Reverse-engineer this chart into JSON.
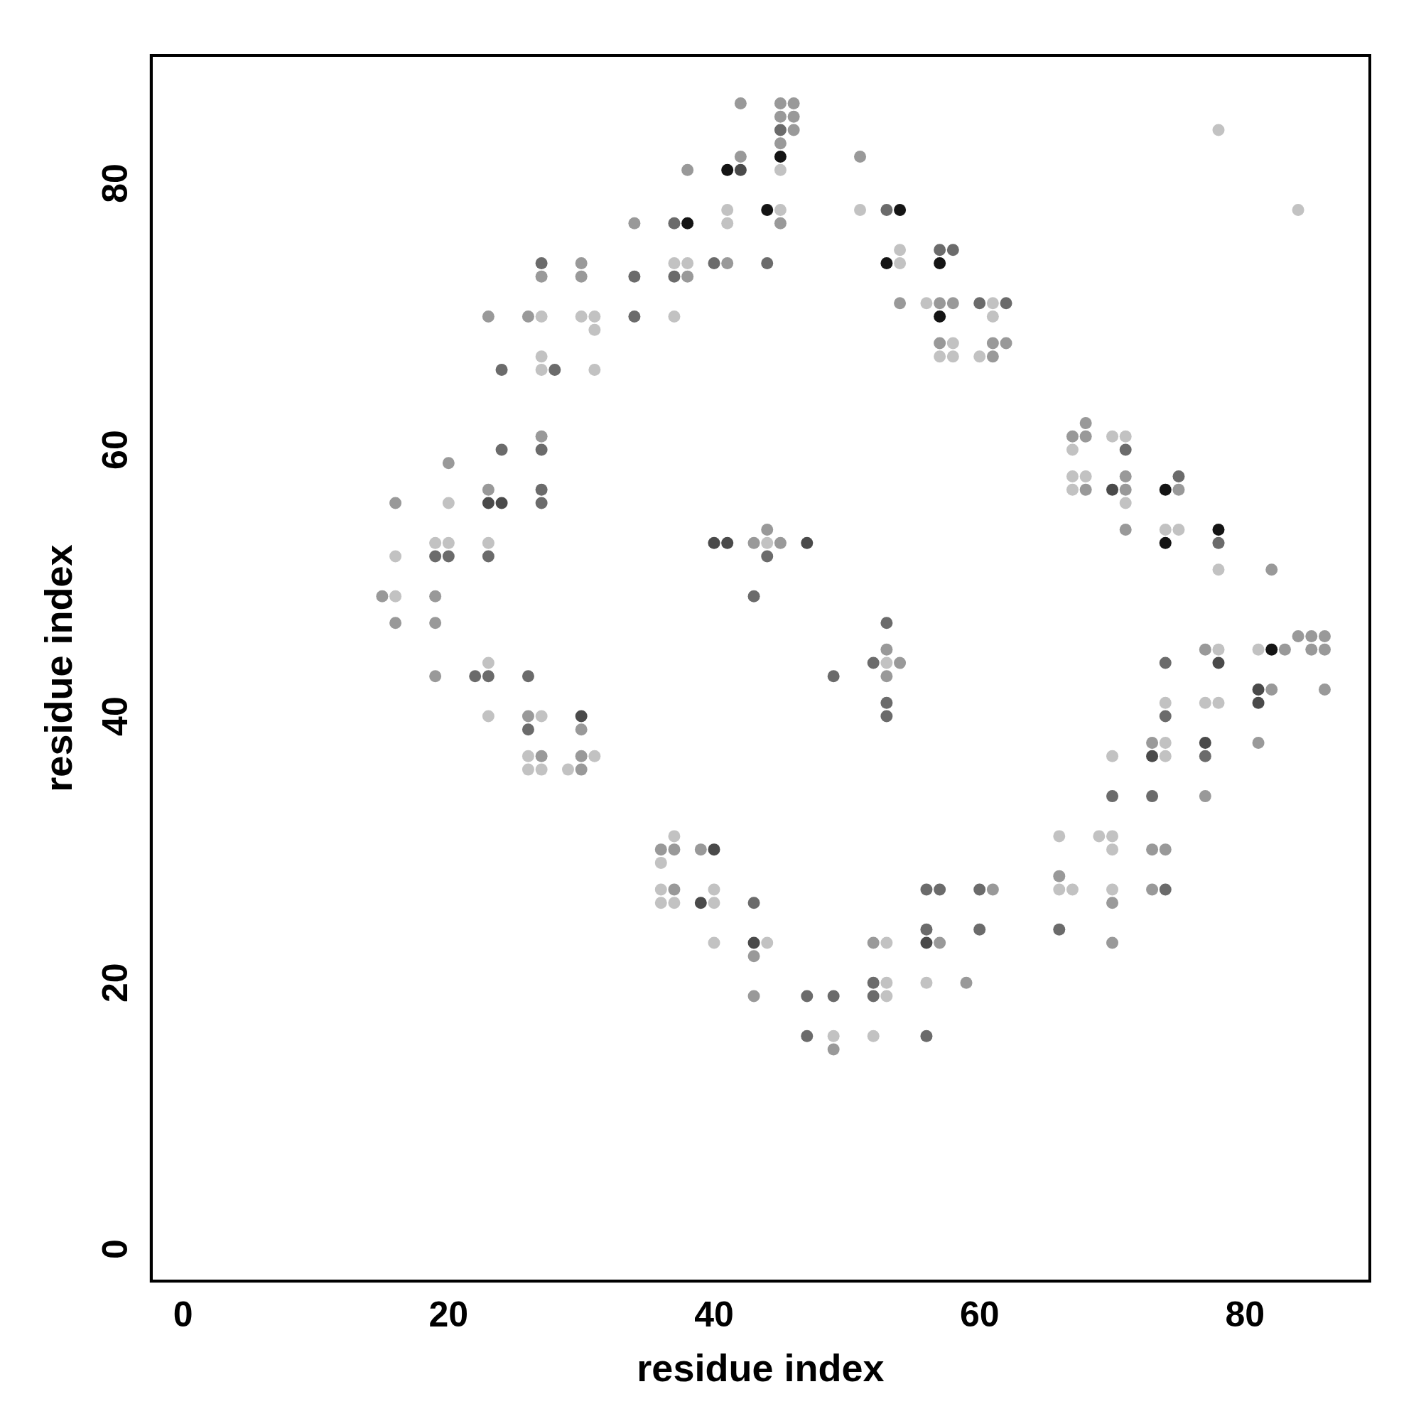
{
  "chart_data": {
    "type": "scatter",
    "xlabel": "residue index",
    "ylabel": "residue index",
    "xlim": [
      -2.4,
      89.4
    ],
    "ylim": [
      -2.4,
      89.6
    ],
    "xticks": [
      0,
      20,
      40,
      60,
      80
    ],
    "yticks": [
      0,
      20,
      40,
      60,
      80
    ],
    "grid": false,
    "legend": false,
    "marker": "circle",
    "series": [
      {
        "color": "#c2c2c2",
        "x": [
          78,
          45,
          41,
          45,
          51,
          84,
          41,
          54,
          37,
          38,
          54,
          56,
          61,
          27,
          30,
          31,
          37,
          61,
          31,
          58,
          27,
          57,
          58,
          60,
          27,
          31,
          70,
          71,
          67,
          67,
          68,
          67,
          20,
          71,
          74,
          75,
          19,
          20,
          23,
          44,
          16,
          78,
          16,
          78,
          81,
          23,
          53,
          74,
          77,
          78,
          23,
          27,
          74,
          26,
          31,
          70,
          74,
          26,
          27,
          29,
          37,
          66,
          69,
          70,
          70,
          36,
          36,
          40,
          66,
          67,
          70,
          36,
          37,
          40,
          40,
          44,
          53,
          53,
          56,
          53,
          49,
          52
        ],
        "values": [
          84,
          81,
          78,
          78,
          78,
          78,
          77,
          75,
          74,
          74,
          74,
          71,
          71,
          70,
          70,
          70,
          70,
          70,
          69,
          68,
          67,
          67,
          67,
          67,
          66,
          66,
          61,
          61,
          60,
          58,
          58,
          57,
          56,
          56,
          54,
          54,
          53,
          53,
          53,
          53,
          52,
          51,
          49,
          45,
          45,
          44,
          44,
          41,
          41,
          41,
          40,
          40,
          38,
          37,
          37,
          37,
          37,
          36,
          36,
          36,
          31,
          31,
          31,
          31,
          30,
          29,
          27,
          27,
          27,
          27,
          27,
          26,
          26,
          26,
          23,
          23,
          23,
          20,
          20,
          19,
          16,
          16
        ]
      },
      {
        "color": "#999999",
        "x": [
          42,
          45,
          46,
          45,
          46,
          46,
          45,
          42,
          51,
          38,
          34,
          45,
          30,
          41,
          27,
          30,
          38,
          54,
          57,
          58,
          23,
          26,
          57,
          61,
          62,
          61,
          68,
          27,
          67,
          68,
          20,
          71,
          23,
          68,
          71,
          75,
          16,
          44,
          71,
          43,
          45,
          82,
          15,
          19,
          16,
          19,
          84,
          85,
          86,
          53,
          77,
          83,
          85,
          86,
          54,
          19,
          53,
          82,
          86,
          26,
          30,
          73,
          81,
          27,
          30,
          30,
          77,
          36,
          37,
          39,
          73,
          74,
          66,
          37,
          61,
          73,
          70,
          52,
          57,
          70,
          43,
          59,
          43,
          49
        ],
        "values": [
          86,
          86,
          86,
          85,
          85,
          84,
          83,
          82,
          82,
          81,
          77,
          77,
          74,
          74,
          73,
          73,
          73,
          71,
          71,
          71,
          70,
          70,
          68,
          68,
          68,
          67,
          62,
          61,
          61,
          61,
          59,
          58,
          57,
          57,
          57,
          57,
          56,
          54,
          54,
          53,
          53,
          51,
          49,
          49,
          47,
          47,
          46,
          46,
          46,
          45,
          45,
          45,
          45,
          45,
          44,
          43,
          43,
          42,
          42,
          40,
          39,
          38,
          38,
          37,
          37,
          36,
          34,
          30,
          30,
          30,
          30,
          30,
          28,
          27,
          27,
          27,
          26,
          23,
          23,
          23,
          22,
          20,
          19,
          15
        ]
      },
      {
        "color": "#6b6b6b",
        "x": [
          45,
          53,
          37,
          57,
          58,
          27,
          40,
          44,
          34,
          37,
          60,
          62,
          34,
          24,
          28,
          24,
          27,
          71,
          75,
          27,
          27,
          78,
          19,
          20,
          23,
          44,
          43,
          53,
          52,
          74,
          22,
          23,
          26,
          49,
          53,
          53,
          74,
          26,
          77,
          70,
          73,
          56,
          57,
          60,
          74,
          43,
          56,
          60,
          66,
          52,
          47,
          49,
          52,
          47,
          56
        ],
        "values": [
          84,
          78,
          77,
          75,
          75,
          74,
          74,
          74,
          73,
          73,
          71,
          71,
          70,
          66,
          66,
          60,
          60,
          60,
          58,
          57,
          56,
          53,
          52,
          52,
          52,
          52,
          49,
          47,
          44,
          44,
          43,
          43,
          43,
          43,
          41,
          40,
          40,
          39,
          37,
          34,
          34,
          27,
          27,
          27,
          27,
          26,
          24,
          24,
          24,
          20,
          19,
          19,
          19,
          16,
          16
        ]
      },
      {
        "color": "#4a4a4a",
        "x": [
          42,
          70,
          23,
          24,
          40,
          41,
          47,
          78,
          81,
          81,
          30,
          77,
          73,
          40,
          39,
          43,
          56
        ],
        "values": [
          81,
          57,
          56,
          56,
          53,
          53,
          53,
          44,
          42,
          41,
          40,
          38,
          37,
          30,
          26,
          23,
          23
        ]
      },
      {
        "color": "#141414",
        "x": [
          45,
          41,
          44,
          54,
          38,
          53,
          57,
          57,
          74,
          78,
          74,
          82
        ],
        "values": [
          82,
          81,
          78,
          78,
          77,
          74,
          74,
          70,
          57,
          54,
          53,
          45
        ]
      }
    ]
  }
}
